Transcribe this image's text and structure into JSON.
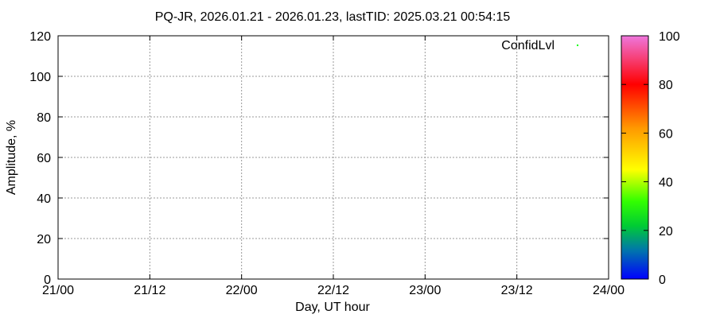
{
  "chart_data": {
    "type": "scatter",
    "title": "PQ-JR, 2026.01.21 - 2026.01.23, lastTID: 2025.03.21 00:54:15",
    "xlabel": "Day, UT hour",
    "ylabel": "Amplitude, %",
    "x_ticks": [
      "21/00",
      "21/12",
      "22/00",
      "22/12",
      "23/00",
      "23/12",
      "24/00"
    ],
    "y_ticks": [
      "0",
      "20",
      "40",
      "60",
      "80",
      "100",
      "120"
    ],
    "ylim": [
      0,
      120
    ],
    "grid": true,
    "legend": {
      "position": "top-right",
      "entries": [
        {
          "name": "ConfidLvl",
          "color": "#00ff00"
        }
      ]
    },
    "series": [
      {
        "name": "ConfidLvl",
        "points": []
      }
    ],
    "colorbar": {
      "range": [
        0,
        100
      ],
      "ticks": [
        "0",
        "20",
        "40",
        "60",
        "80",
        "100"
      ],
      "colors": [
        "#0000ff",
        "#00aa66",
        "#00ff00",
        "#ffff00",
        "#ff8800",
        "#ff0000",
        "#ee66dd"
      ]
    }
  }
}
